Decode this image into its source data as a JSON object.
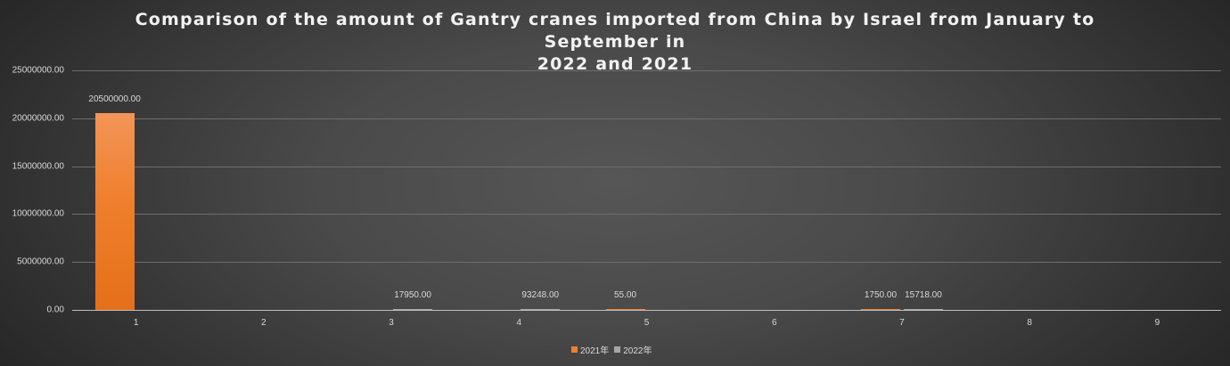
{
  "chart_data": {
    "type": "bar",
    "title": "Comparison of the amount of Gantry cranes imported from China by Israel from January to September in 2022 and 2021",
    "title_lines": [
      "Comparison of the amount of Gantry cranes imported from China by Israel from January to September in",
      "2022 and 2021"
    ],
    "xlabel": "",
    "ylabel": "",
    "categories": [
      "1",
      "2",
      "3",
      "4",
      "5",
      "6",
      "7",
      "8",
      "9"
    ],
    "series": [
      {
        "name": "2021年",
        "color": "#ef7f2c",
        "values": [
          20500000,
          0,
          0,
          0,
          55,
          0,
          1750,
          0,
          0
        ],
        "labels": [
          "20500000.00",
          "",
          "",
          "",
          "55.00",
          "",
          "1750.00",
          "",
          ""
        ]
      },
      {
        "name": "2022年",
        "color": "#a6a6a6",
        "values": [
          0,
          0,
          17950,
          93248,
          0,
          0,
          15718,
          0,
          0
        ],
        "labels": [
          "",
          "",
          "17950.00",
          "93248.00",
          "",
          "",
          "15718.00",
          "",
          ""
        ]
      }
    ],
    "ylim": [
      0,
      25000000
    ],
    "yticks": [
      "0.00",
      "5000000.00",
      "10000000.00",
      "15000000.00",
      "20000000.00",
      "25000000.00"
    ],
    "grid": true,
    "legend_position": "bottom"
  },
  "legend": {
    "s2021": "2021年",
    "s2022": "2022年"
  }
}
